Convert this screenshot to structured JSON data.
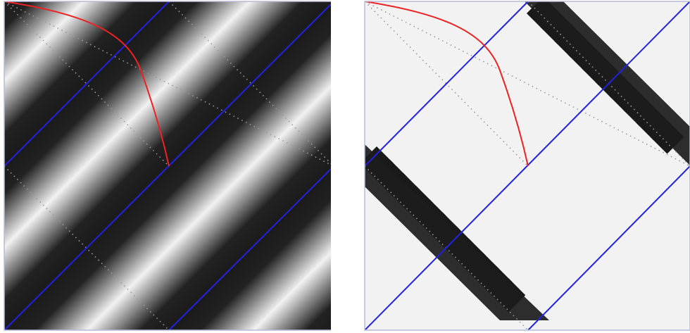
{
  "colors": {
    "background": "#ffffff",
    "frame": "#b8bcd8",
    "band_dark": "#1a1a1a",
    "band_light": "#f2f2f2",
    "characteristic_lines": "#2222dd",
    "curve": "#ee2222",
    "dotted_lines": "#999999"
  },
  "panels": [
    {
      "id": "left",
      "pattern": "smooth-diagonal-stripes",
      "stripe_direction": "up-right"
    },
    {
      "id": "right",
      "pattern": "jagged-diagonal-band",
      "band_direction": "down-right"
    }
  ]
}
